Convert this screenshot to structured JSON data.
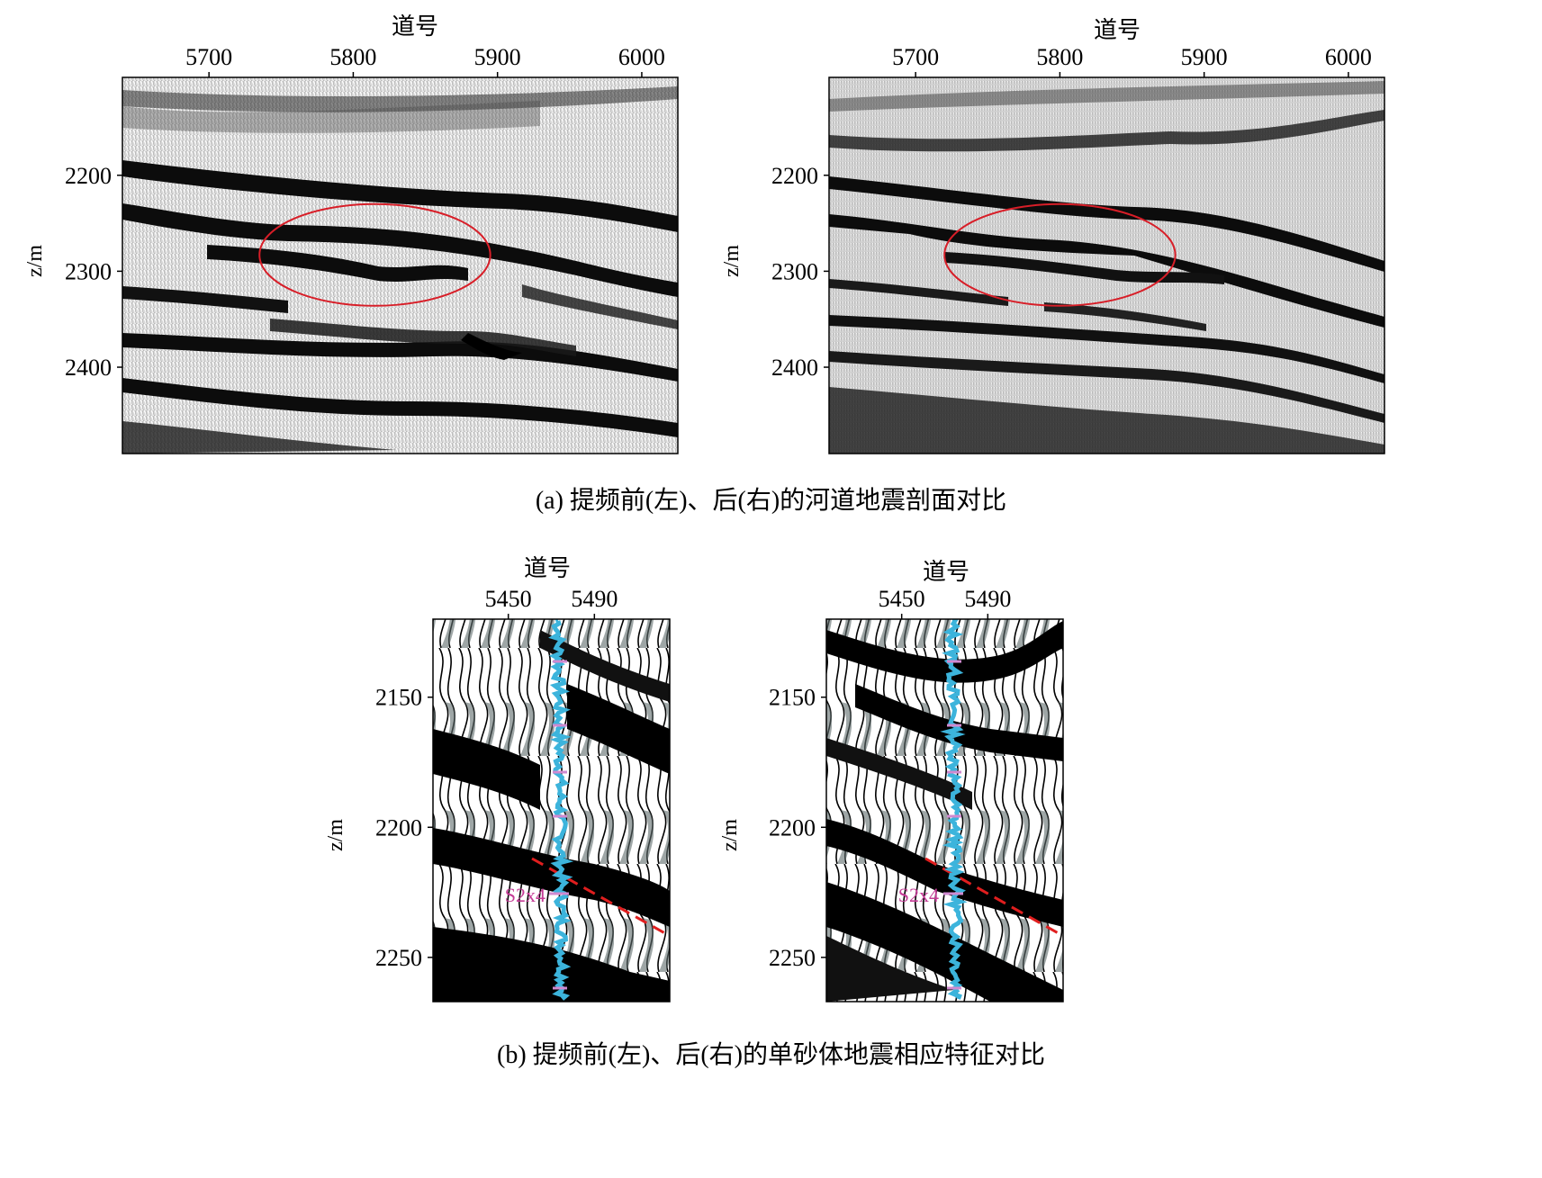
{
  "figure": {
    "part_a": {
      "caption": "(a) 提频前(左)、后(右)的河道地震剖面对比",
      "panels": [
        {
          "id": "a-left",
          "x_axis_label": "道号",
          "y_axis_label": "z/m",
          "x_ticks": [
            "5700",
            "5800",
            "5900",
            "6000"
          ],
          "x_tick_values": [
            5700,
            5800,
            5900,
            6000
          ],
          "x_range": [
            5640,
            6025
          ],
          "y_ticks": [
            "2200",
            "2300",
            "2400"
          ],
          "y_tick_values": [
            2200,
            2300,
            2400
          ],
          "y_range": [
            2098,
            2490
          ],
          "annotation": "red ellipse marking channel",
          "ellipse_center": [
            5815,
            2283
          ],
          "ellipse_radius": [
            80,
            53
          ]
        },
        {
          "id": "a-right",
          "x_axis_label": "道号",
          "y_axis_label": "z/m",
          "x_ticks": [
            "5700",
            "5800",
            "5900",
            "6000"
          ],
          "x_tick_values": [
            5700,
            5800,
            5900,
            6000
          ],
          "x_range": [
            5640,
            6025
          ],
          "y_ticks": [
            "2200",
            "2300",
            "2400"
          ],
          "y_tick_values": [
            2200,
            2300,
            2400
          ],
          "y_range": [
            2098,
            2490
          ],
          "annotation": "red ellipse marking channel",
          "ellipse_center": [
            5800,
            2283
          ],
          "ellipse_radius": [
            80,
            53
          ]
        }
      ]
    },
    "part_b": {
      "caption": "(b) 提频前(左)、后(右)的单砂体地震相应特征对比",
      "panels": [
        {
          "id": "b-left",
          "x_axis_label": "道号",
          "y_axis_label": "z/m",
          "x_ticks": [
            "5450",
            "5490"
          ],
          "x_tick_values": [
            5450,
            5490
          ],
          "x_range": [
            5415,
            5525
          ],
          "y_ticks": [
            "2150",
            "2200",
            "2250"
          ],
          "y_tick_values": [
            2150,
            2200,
            2250
          ],
          "y_range": [
            2120,
            2267
          ],
          "well_marker": "S2x4"
        },
        {
          "id": "b-right",
          "x_axis_label": "道号",
          "y_axis_label": "z/m",
          "x_ticks": [
            "5450",
            "5490"
          ],
          "x_tick_values": [
            5450,
            5490
          ],
          "x_range": [
            5415,
            5525
          ],
          "y_ticks": [
            "2150",
            "2200",
            "2250"
          ],
          "y_tick_values": [
            2150,
            2200,
            2250
          ],
          "y_range": [
            2120,
            2267
          ],
          "well_marker": "S2x4"
        }
      ]
    },
    "colors": {
      "annotation_ellipse": "#d81e28",
      "well_log": "#3cb4dc",
      "horizon_line": "#e01e1e",
      "well_marker_text": "#c43c96",
      "seismic_dark": "#0a0a0a",
      "seismic_light": "#e8e8e8"
    }
  }
}
